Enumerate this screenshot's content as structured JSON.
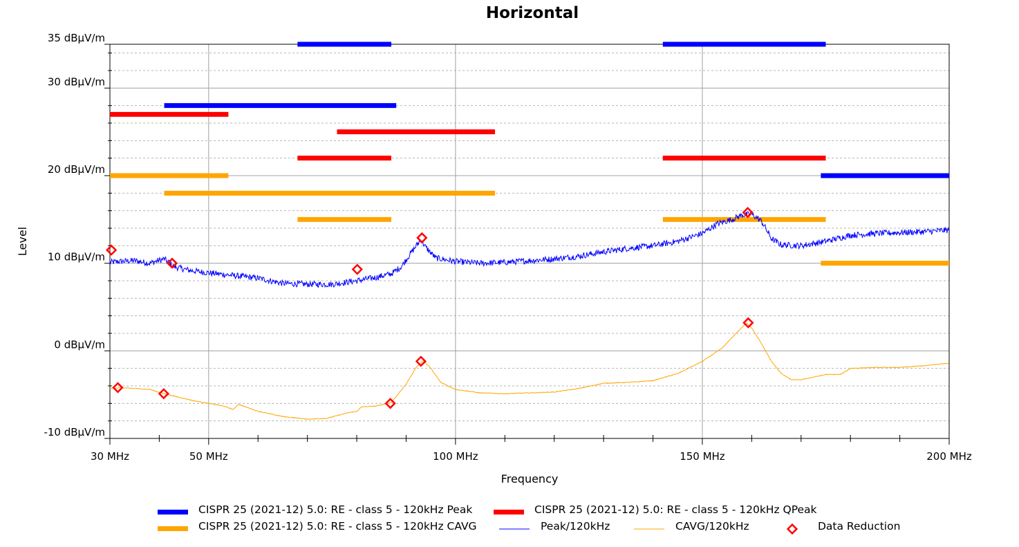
{
  "chart_data": {
    "type": "line",
    "title": "Horizontal",
    "xlabel": "Frequency",
    "ylabel": "Level",
    "xlim": [
      30,
      200
    ],
    "ylim": [
      -10,
      35
    ],
    "x_unit": "MHz",
    "y_unit": "dBµV/m",
    "x_ticks": [
      {
        "value": 30,
        "label": "30 MHz"
      },
      {
        "value": 50,
        "label": "50 MHz"
      },
      {
        "value": 100,
        "label": "100 MHz"
      },
      {
        "value": 150,
        "label": "150 MHz"
      },
      {
        "value": 200,
        "label": "200 MHz"
      }
    ],
    "y_ticks": [
      {
        "value": 35,
        "label": "35 dBµV/m"
      },
      {
        "value": 30,
        "label": "30 dBµV/m"
      },
      {
        "value": 20,
        "label": "20 dBµV/m"
      },
      {
        "value": 10,
        "label": "10 dBµV/m"
      },
      {
        "value": 0,
        "label": "0 dBµV/m"
      },
      {
        "value": -10,
        "label": "-10 dBµV/m"
      }
    ],
    "x_minor_step": 10,
    "y_minor_step": 2,
    "grid": true,
    "legend_position": "bottom",
    "series": [
      {
        "name": "CISPR 25 (2021-12) 5.0: RE - class 5 - 120kHz Peak",
        "kind": "limit",
        "color": "#0000ff",
        "segments": [
          {
            "x": [
              41,
              88
            ],
            "y": 28
          },
          {
            "x": [
              68,
              87
            ],
            "y": 35
          },
          {
            "x": [
              142,
              175
            ],
            "y": 35
          },
          {
            "x": [
              174,
              200
            ],
            "y": 20
          }
        ]
      },
      {
        "name": "CISPR 25 (2021-12) 5.0: RE - class 5 - 120kHz QPeak",
        "kind": "limit",
        "color": "#ff0000",
        "segments": [
          {
            "x": [
              30,
              54
            ],
            "y": 27
          },
          {
            "x": [
              76,
              108
            ],
            "y": 25
          },
          {
            "x": [
              68,
              87
            ],
            "y": 22
          },
          {
            "x": [
              142,
              175
            ],
            "y": 22
          }
        ]
      },
      {
        "name": "CISPR 25 (2021-12) 5.0: RE - class 5 - 120kHz CAVG",
        "kind": "limit",
        "color": "#ffa500",
        "segments": [
          {
            "x": [
              30,
              54
            ],
            "y": 20
          },
          {
            "x": [
              41,
              108
            ],
            "y": 18
          },
          {
            "x": [
              68,
              87
            ],
            "y": 15
          },
          {
            "x": [
              142,
              175
            ],
            "y": 15
          },
          {
            "x": [
              174,
              200
            ],
            "y": 10
          }
        ]
      },
      {
        "name": "Peak/120kHz",
        "kind": "trace",
        "color": "#0000ff",
        "x": [
          30,
          32,
          35,
          38,
          41,
          43,
          46,
          50,
          55,
          60,
          65,
          70,
          75,
          80,
          84,
          87,
          89,
          91,
          93,
          94,
          96,
          100,
          105,
          110,
          115,
          120,
          125,
          130,
          135,
          140,
          145,
          150,
          153,
          156,
          158,
          160,
          162,
          164,
          166,
          170,
          175,
          180,
          185,
          190,
          195,
          200
        ],
        "y": [
          10.1,
          10.2,
          10.3,
          10.0,
          10.5,
          9.6,
          9.2,
          8.9,
          8.6,
          8.3,
          7.7,
          7.6,
          7.6,
          8.0,
          8.4,
          8.8,
          9.6,
          11.2,
          12.7,
          11.8,
          10.6,
          10.2,
          10.0,
          10.1,
          10.3,
          10.5,
          10.8,
          11.3,
          11.7,
          12.0,
          12.5,
          13.4,
          14.5,
          15.0,
          15.5,
          15.6,
          14.8,
          12.8,
          12.1,
          12.0,
          12.5,
          13.2,
          13.4,
          13.5,
          13.6,
          13.8
        ],
        "noise": 0.35
      },
      {
        "name": "CAVG/120kHz",
        "kind": "trace",
        "color": "#ffa500",
        "x": [
          30,
          32,
          35,
          38,
          41,
          44,
          47,
          50,
          53,
          55,
          56,
          60,
          65,
          70,
          74,
          78,
          80,
          81,
          84,
          87,
          90,
          92,
          93.5,
          95,
          97,
          100,
          105,
          110,
          115,
          120,
          125,
          130,
          135,
          140,
          145,
          150,
          154,
          157,
          159,
          160,
          162,
          164,
          166,
          168,
          170,
          175,
          178,
          180,
          185,
          190,
          195,
          200
        ],
        "y": [
          -4.3,
          -4.2,
          -4.3,
          -4.4,
          -4.9,
          -5.3,
          -5.7,
          -6.0,
          -6.3,
          -6.7,
          -6.1,
          -6.9,
          -7.5,
          -7.8,
          -7.7,
          -7.1,
          -6.9,
          -6.4,
          -6.3,
          -5.9,
          -3.8,
          -1.9,
          -1.1,
          -2.0,
          -3.6,
          -4.4,
          -4.8,
          -4.9,
          -4.8,
          -4.7,
          -4.3,
          -3.7,
          -3.6,
          -3.4,
          -2.6,
          -1.2,
          0.3,
          2.1,
          3.2,
          2.6,
          0.8,
          -1.2,
          -2.6,
          -3.3,
          -3.3,
          -2.7,
          -2.7,
          -2.0,
          -1.9,
          -1.9,
          -1.7,
          -1.4
        ],
        "noise": 0.04
      },
      {
        "name": "Data Reduction",
        "kind": "markers",
        "color": "#ff0000",
        "points": [
          {
            "x": 30.3,
            "y": 11.5
          },
          {
            "x": 42.6,
            "y": 10.0
          },
          {
            "x": 80.1,
            "y": 9.3
          },
          {
            "x": 93.2,
            "y": 12.9
          },
          {
            "x": 159.2,
            "y": 15.8
          },
          {
            "x": 31.6,
            "y": -4.2
          },
          {
            "x": 40.9,
            "y": -4.9
          },
          {
            "x": 86.8,
            "y": -6.0
          },
          {
            "x": 93.0,
            "y": -1.2
          },
          {
            "x": 159.3,
            "y": 3.2
          }
        ]
      }
    ]
  }
}
